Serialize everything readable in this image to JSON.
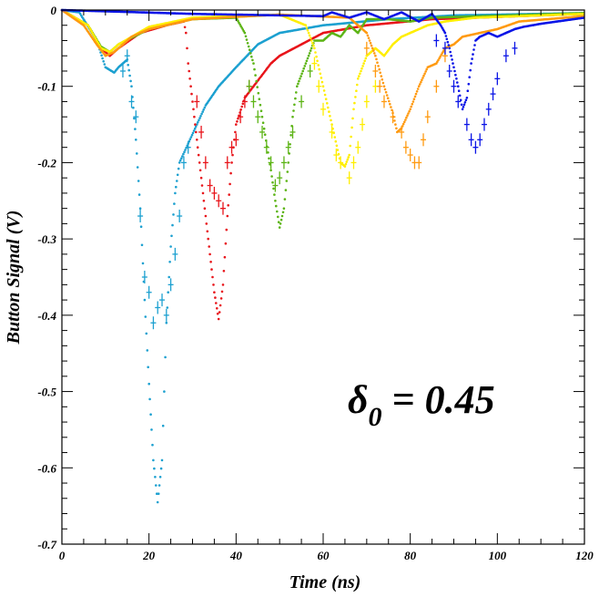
{
  "chart_data": {
    "type": "scatter",
    "xlabel": "Time (ns)",
    "ylabel": "Button Signal (V)",
    "xlim": [
      0,
      120
    ],
    "ylim": [
      -0.7,
      0
    ],
    "x_ticks": [
      0,
      20,
      40,
      60,
      80,
      100,
      120
    ],
    "x_tick_labels": [
      "0",
      "20",
      "40",
      "60",
      "80",
      "100",
      "120"
    ],
    "y_ticks": [
      0,
      -0.1,
      -0.2,
      -0.3,
      -0.4,
      -0.5,
      -0.6,
      -0.7
    ],
    "y_tick_labels": [
      "0",
      "-0.1",
      "-0.2",
      "-0.3",
      "-0.4",
      "-0.5",
      "-0.6",
      "-0.7"
    ],
    "grid": false,
    "annotation": {
      "symbol": "δ",
      "subscript": "0",
      "rest": " = 0.45"
    },
    "series": [
      {
        "color": "#1ca0d0",
        "style": "dots",
        "points": [
          [
            0,
            0
          ],
          [
            4,
            -0.003
          ],
          [
            8,
            -0.04
          ],
          [
            10,
            -0.075
          ],
          [
            12,
            -0.082
          ],
          [
            13,
            -0.075
          ],
          [
            14,
            -0.07
          ],
          [
            15,
            -0.065
          ],
          [
            16,
            -0.1
          ],
          [
            17,
            -0.17
          ],
          [
            18,
            -0.26
          ],
          [
            19,
            -0.38
          ],
          [
            20,
            -0.49
          ],
          [
            21,
            -0.59
          ],
          [
            22,
            -0.645
          ],
          [
            23,
            -0.59
          ],
          [
            23.5,
            -0.5
          ],
          [
            24,
            -0.41
          ],
          [
            25,
            -0.31
          ],
          [
            26,
            -0.24
          ],
          [
            27,
            -0.2
          ],
          [
            29,
            -0.175
          ],
          [
            31,
            -0.15
          ],
          [
            33,
            -0.125
          ],
          [
            36,
            -0.1
          ],
          [
            40,
            -0.075
          ],
          [
            45,
            -0.045
          ],
          [
            50,
            -0.03
          ],
          [
            60,
            -0.02
          ],
          [
            75,
            -0.012
          ],
          [
            90,
            -0.007
          ],
          [
            120,
            -0.004
          ]
        ]
      },
      {
        "color": "#e8141a",
        "style": "dots",
        "points": [
          [
            0,
            0
          ],
          [
            6,
            -0.02
          ],
          [
            9,
            -0.05
          ],
          [
            11,
            -0.06
          ],
          [
            13,
            -0.05
          ],
          [
            18,
            -0.03
          ],
          [
            24,
            -0.02
          ],
          [
            28,
            -0.015
          ],
          [
            28.5,
            -0.03
          ],
          [
            29,
            -0.07
          ],
          [
            30,
            -0.12
          ],
          [
            31,
            -0.17
          ],
          [
            32,
            -0.22
          ],
          [
            33,
            -0.27
          ],
          [
            34,
            -0.32
          ],
          [
            35,
            -0.37
          ],
          [
            36,
            -0.405
          ],
          [
            37,
            -0.36
          ],
          [
            38,
            -0.27
          ],
          [
            39,
            -0.2
          ],
          [
            40,
            -0.15
          ],
          [
            42,
            -0.115
          ],
          [
            44,
            -0.1
          ],
          [
            46,
            -0.085
          ],
          [
            48,
            -0.07
          ],
          [
            50,
            -0.06
          ],
          [
            55,
            -0.045
          ],
          [
            60,
            -0.03
          ],
          [
            70,
            -0.02
          ],
          [
            85,
            -0.012
          ],
          [
            120,
            -0.005
          ]
        ]
      },
      {
        "color": "#5cb415",
        "style": "dots",
        "points": [
          [
            0,
            0
          ],
          [
            6,
            -0.02
          ],
          [
            9,
            -0.048
          ],
          [
            11,
            -0.055
          ],
          [
            13,
            -0.045
          ],
          [
            20,
            -0.025
          ],
          [
            30,
            -0.012
          ],
          [
            40,
            -0.01
          ],
          [
            42,
            -0.03
          ],
          [
            44,
            -0.07
          ],
          [
            46,
            -0.14
          ],
          [
            48,
            -0.21
          ],
          [
            49,
            -0.25
          ],
          [
            50,
            -0.285
          ],
          [
            51,
            -0.26
          ],
          [
            52,
            -0.2
          ],
          [
            53,
            -0.14
          ],
          [
            54,
            -0.1
          ],
          [
            56,
            -0.07
          ],
          [
            58,
            -0.04
          ],
          [
            60,
            -0.04
          ],
          [
            62,
            -0.03
          ],
          [
            64,
            -0.035
          ],
          [
            66,
            -0.02
          ],
          [
            68,
            -0.03
          ],
          [
            70,
            -0.012
          ],
          [
            75,
            -0.012
          ],
          [
            80,
            -0.015
          ],
          [
            85,
            -0.01
          ],
          [
            120,
            -0.004
          ]
        ]
      },
      {
        "color": "#ffee00",
        "style": "dots",
        "points": [
          [
            0,
            0
          ],
          [
            6,
            -0.02
          ],
          [
            9,
            -0.05
          ],
          [
            11,
            -0.055
          ],
          [
            13,
            -0.045
          ],
          [
            20,
            -0.022
          ],
          [
            30,
            -0.01
          ],
          [
            50,
            -0.006
          ],
          [
            56,
            -0.02
          ],
          [
            58,
            -0.05
          ],
          [
            60,
            -0.1
          ],
          [
            62,
            -0.15
          ],
          [
            64,
            -0.2
          ],
          [
            65,
            -0.205
          ],
          [
            66,
            -0.19
          ],
          [
            67,
            -0.13
          ],
          [
            68,
            -0.09
          ],
          [
            70,
            -0.06
          ],
          [
            72,
            -0.05
          ],
          [
            74,
            -0.06
          ],
          [
            76,
            -0.045
          ],
          [
            78,
            -0.035
          ],
          [
            80,
            -0.03
          ],
          [
            84,
            -0.02
          ],
          [
            88,
            -0.015
          ],
          [
            95,
            -0.01
          ],
          [
            120,
            -0.005
          ]
        ]
      },
      {
        "color": "#ff9a10",
        "style": "dots",
        "points": [
          [
            0,
            0
          ],
          [
            5,
            -0.02
          ],
          [
            8,
            -0.045
          ],
          [
            10,
            -0.06
          ],
          [
            12,
            -0.055
          ],
          [
            14,
            -0.045
          ],
          [
            16,
            -0.035
          ],
          [
            20,
            -0.025
          ],
          [
            30,
            -0.012
          ],
          [
            50,
            -0.006
          ],
          [
            66,
            -0.01
          ],
          [
            70,
            -0.03
          ],
          [
            72,
            -0.06
          ],
          [
            74,
            -0.1
          ],
          [
            76,
            -0.135
          ],
          [
            77,
            -0.16
          ],
          [
            78,
            -0.155
          ],
          [
            80,
            -0.13
          ],
          [
            82,
            -0.1
          ],
          [
            84,
            -0.075
          ],
          [
            86,
            -0.07
          ],
          [
            88,
            -0.05
          ],
          [
            90,
            -0.045
          ],
          [
            92,
            -0.035
          ],
          [
            96,
            -0.03
          ],
          [
            100,
            -0.025
          ],
          [
            105,
            -0.015
          ],
          [
            120,
            -0.008
          ]
        ]
      },
      {
        "color": "#0a14e6",
        "style": "dots",
        "points": [
          [
            0,
            0
          ],
          [
            30,
            -0.005
          ],
          [
            60,
            -0.008
          ],
          [
            62,
            -0.003
          ],
          [
            66,
            -0.01
          ],
          [
            70,
            -0.003
          ],
          [
            74,
            -0.012
          ],
          [
            78,
            -0.003
          ],
          [
            82,
            -0.015
          ],
          [
            85,
            -0.005
          ],
          [
            87,
            -0.02
          ],
          [
            88,
            -0.03
          ],
          [
            89,
            -0.05
          ],
          [
            90,
            -0.075
          ],
          [
            91,
            -0.1
          ],
          [
            92,
            -0.13
          ],
          [
            93,
            -0.115
          ],
          [
            94,
            -0.07
          ],
          [
            95,
            -0.04
          ],
          [
            96,
            -0.035
          ],
          [
            98,
            -0.03
          ],
          [
            100,
            -0.035
          ],
          [
            102,
            -0.03
          ],
          [
            104,
            -0.025
          ],
          [
            106,
            -0.022
          ],
          [
            110,
            -0.018
          ],
          [
            115,
            -0.014
          ],
          [
            120,
            -0.01
          ]
        ]
      }
    ],
    "error_points": [
      {
        "color": "#1ca0d0",
        "points": [
          [
            14,
            -0.08
          ],
          [
            15,
            -0.06
          ],
          [
            16,
            -0.12
          ],
          [
            17,
            -0.14
          ],
          [
            18,
            -0.27
          ],
          [
            19,
            -0.35
          ],
          [
            20,
            -0.37
          ],
          [
            21,
            -0.41
          ],
          [
            22,
            -0.39
          ],
          [
            23,
            -0.38
          ],
          [
            24,
            -0.4
          ],
          [
            25,
            -0.36
          ],
          [
            26,
            -0.32
          ],
          [
            27,
            -0.27
          ],
          [
            28,
            -0.2
          ],
          [
            29,
            -0.18
          ]
        ]
      },
      {
        "color": "#e8141a",
        "points": [
          [
            31,
            -0.12
          ],
          [
            32,
            -0.16
          ],
          [
            33,
            -0.2
          ],
          [
            34,
            -0.23
          ],
          [
            35,
            -0.24
          ],
          [
            36,
            -0.25
          ],
          [
            37,
            -0.26
          ],
          [
            38,
            -0.2
          ],
          [
            39,
            -0.18
          ],
          [
            40,
            -0.17
          ],
          [
            41,
            -0.14
          ],
          [
            42,
            -0.12
          ],
          [
            43,
            -0.1
          ]
        ]
      },
      {
        "color": "#5cb415",
        "points": [
          [
            43,
            -0.1
          ],
          [
            44,
            -0.12
          ],
          [
            45,
            -0.14
          ],
          [
            46,
            -0.16
          ],
          [
            47,
            -0.18
          ],
          [
            48,
            -0.2
          ],
          [
            49,
            -0.23
          ],
          [
            50,
            -0.22
          ],
          [
            51,
            -0.2
          ],
          [
            52,
            -0.18
          ],
          [
            53,
            -0.16
          ],
          [
            55,
            -0.12
          ],
          [
            57,
            -0.08
          ]
        ]
      },
      {
        "color": "#ffee00",
        "points": [
          [
            58,
            -0.07
          ],
          [
            59,
            -0.1
          ],
          [
            60,
            -0.13
          ],
          [
            62,
            -0.16
          ],
          [
            63,
            -0.19
          ],
          [
            64,
            -0.2
          ],
          [
            66,
            -0.22
          ],
          [
            67,
            -0.2
          ],
          [
            68,
            -0.18
          ],
          [
            69,
            -0.15
          ],
          [
            70,
            -0.12
          ],
          [
            72,
            -0.1
          ]
        ]
      },
      {
        "color": "#ff9a10",
        "points": [
          [
            70,
            -0.05
          ],
          [
            72,
            -0.08
          ],
          [
            73,
            -0.1
          ],
          [
            74,
            -0.12
          ],
          [
            76,
            -0.14
          ],
          [
            78,
            -0.16
          ],
          [
            79,
            -0.18
          ],
          [
            80,
            -0.19
          ],
          [
            81,
            -0.2
          ],
          [
            82,
            -0.2
          ],
          [
            83,
            -0.17
          ],
          [
            84,
            -0.14
          ],
          [
            86,
            -0.1
          ],
          [
            88,
            -0.06
          ]
        ]
      },
      {
        "color": "#0a14e6",
        "points": [
          [
            86,
            -0.04
          ],
          [
            88,
            -0.05
          ],
          [
            89,
            -0.08
          ],
          [
            90,
            -0.1
          ],
          [
            91,
            -0.12
          ],
          [
            93,
            -0.15
          ],
          [
            94,
            -0.17
          ],
          [
            95,
            -0.18
          ],
          [
            96,
            -0.17
          ],
          [
            97,
            -0.15
          ],
          [
            98,
            -0.13
          ],
          [
            99,
            -0.11
          ],
          [
            100,
            -0.09
          ],
          [
            102,
            -0.06
          ],
          [
            104,
            -0.05
          ]
        ]
      }
    ]
  }
}
